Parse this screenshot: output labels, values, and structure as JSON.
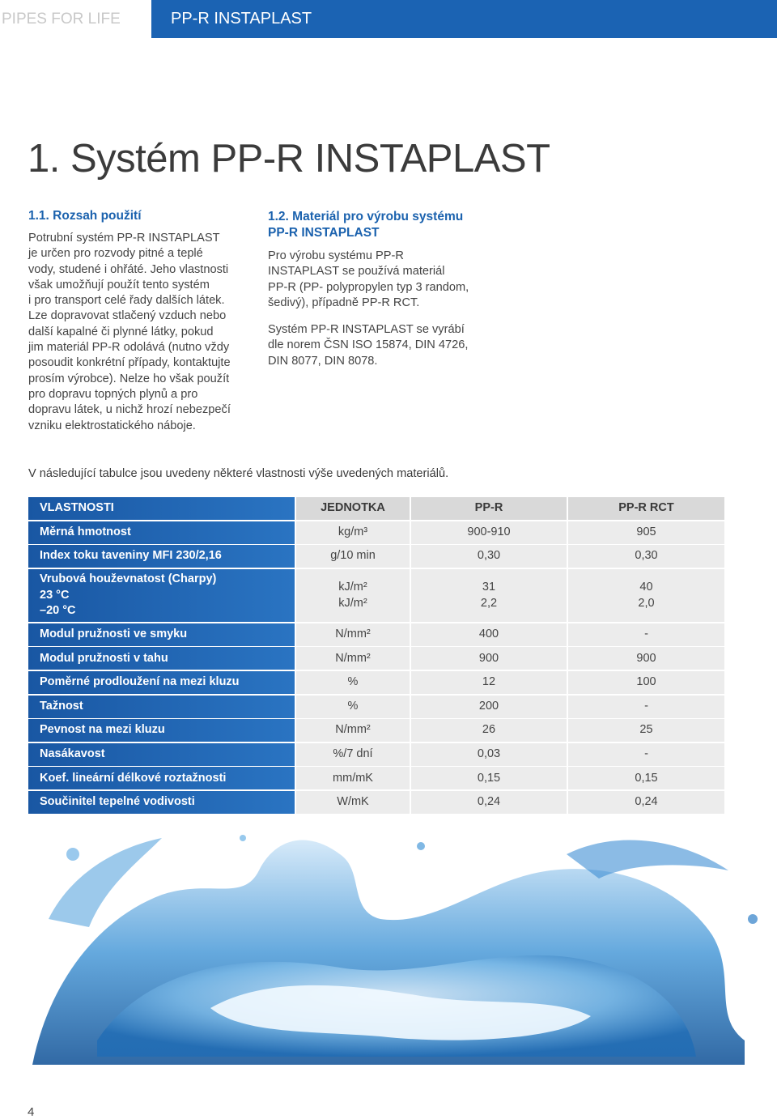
{
  "header": {
    "brand": "PIPES FOR LIFE",
    "product": "PP-R INSTAPLAST"
  },
  "title": "1. Systém PP-R INSTAPLAST",
  "section1": {
    "heading": "1.1. Rozsah použití",
    "lines": [
      "Potrubní systém PP-R INSTAPLAST",
      "je určen pro rozvody pitné a teplé",
      "vody, studené i ohřáté. Jeho vlastnosti",
      "však umožňují použít tento systém",
      "i pro transport celé řady dalších látek.",
      "Lze dopravovat stlačený vzduch nebo",
      "další kapalné či plynné látky, pokud",
      "jim materiál PP-R odolává (nutno vždy",
      "posoudit konkrétní případy, kontaktujte",
      "prosím výrobce). Nelze ho však použít",
      "pro dopravu topných plynů a pro",
      "dopravu látek, u nichž hrozí nebezpečí",
      "vzniku elektrostatického náboje."
    ]
  },
  "section2": {
    "heading": [
      "1.2. Materiál pro výrobu systému",
      "PP-R INSTAPLAST"
    ],
    "paragraphs": [
      [
        "Pro výrobu systému PP-R",
        "INSTAPLAST se používá materiál",
        "PP-R (PP- polypropylen typ 3 random,",
        "šedivý), případně PP-R RCT."
      ],
      [
        "Systém PP-R INSTAPLAST se vyrábí",
        "dle norem ČSN ISO 15874, DIN 4726,",
        "DIN 8077, DIN 8078."
      ]
    ]
  },
  "intro": "V následující tabulce jsou uvedeny některé vlastnosti výše uvedených materiálů.",
  "table": {
    "header": [
      "VLASTNOSTI",
      "JEDNOTKA",
      "PP-R",
      "PP-R RCT"
    ],
    "rows": [
      [
        "Měrná hmotnost",
        "kg/m³",
        "900-910",
        "905"
      ],
      [
        "Index toku taveniny MFI 230/2,16",
        "g/10 min",
        "0,30",
        "0,30"
      ],
      [
        "Vrubová houževnatost (Charpy)\n23 °C\n–20 °C",
        "kJ/m²\nkJ/m²",
        "31\n2,2",
        "40\n2,0"
      ],
      [
        "Modul pružnosti ve smyku",
        "N/mm²",
        "400",
        "-"
      ],
      [
        "Modul pružnosti v tahu",
        "N/mm²",
        "900",
        "900"
      ],
      [
        "Poměrné prodloužení na mezi kluzu",
        "%",
        "12",
        "100"
      ],
      [
        "Tažnost",
        "%",
        "200",
        "-"
      ],
      [
        "Pevnost na mezi kluzu",
        "N/mm²",
        "26",
        "25"
      ],
      [
        "Nasákavost",
        "%/7 dní",
        "0,03",
        "-"
      ],
      [
        "Koef. lineární délkové roztažnosti",
        "mm/mK",
        "0,15",
        "0,15"
      ],
      [
        "Součinitel tepelné vodivosti",
        "W/mK",
        "0,24",
        "0,24"
      ]
    ]
  },
  "page_number": "4"
}
